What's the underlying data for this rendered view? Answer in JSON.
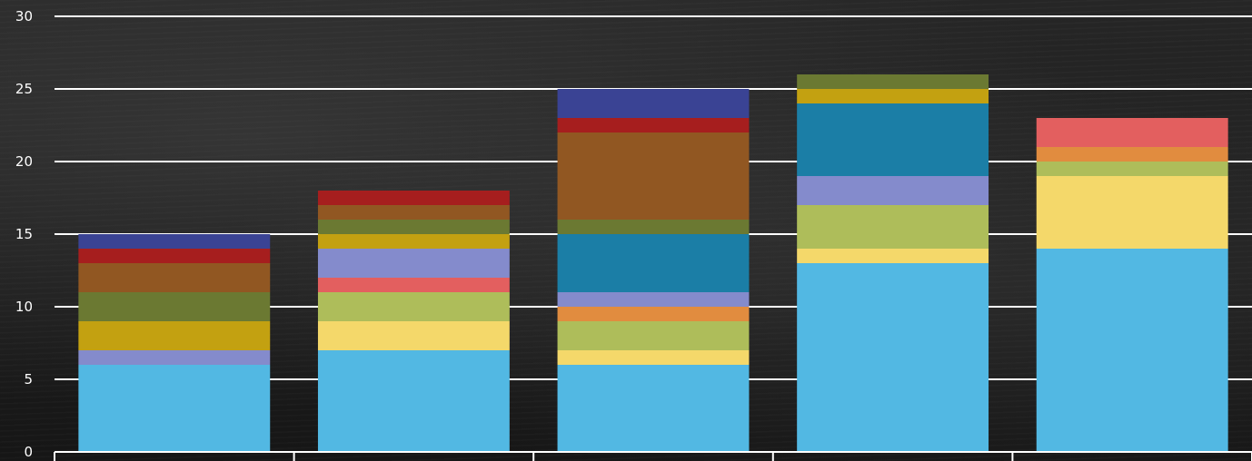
{
  "chart_data": {
    "type": "bar",
    "stacked": true,
    "title": "",
    "xlabel": "",
    "ylabel": "",
    "ylim": [
      0,
      30
    ],
    "yticks": [
      0,
      5,
      10,
      15,
      20,
      25,
      30
    ],
    "grid": true,
    "categories": [
      "",
      "",
      "",
      "",
      ""
    ],
    "series": [
      {
        "color": "#52b8e3",
        "values": [
          6,
          7,
          6,
          13,
          14
        ]
      },
      {
        "color": "#f4d86a",
        "values": [
          0,
          2,
          1,
          1,
          5
        ]
      },
      {
        "color": "#aebd5a",
        "values": [
          0,
          2,
          2,
          3,
          1
        ]
      },
      {
        "color": "#e18c3f",
        "values": [
          0,
          0,
          1,
          0,
          1
        ]
      },
      {
        "color": "#e35f5f",
        "values": [
          0,
          1,
          0,
          0,
          2
        ]
      },
      {
        "color": "#848bcc",
        "values": [
          1,
          2,
          1,
          2,
          0
        ]
      },
      {
        "color": "#1b7ea6",
        "values": [
          0,
          0,
          4,
          5,
          0
        ]
      },
      {
        "color": "#c3a111",
        "values": [
          2,
          1,
          0,
          1,
          0
        ]
      },
      {
        "color": "#6b7932",
        "values": [
          2,
          1,
          1,
          1,
          0
        ]
      },
      {
        "color": "#915722",
        "values": [
          2,
          1,
          6,
          0,
          0
        ]
      },
      {
        "color": "#a61e1e",
        "values": [
          1,
          1,
          1,
          0,
          0
        ]
      },
      {
        "color": "#3a4394",
        "values": [
          1,
          0,
          2,
          0,
          0
        ]
      }
    ]
  }
}
